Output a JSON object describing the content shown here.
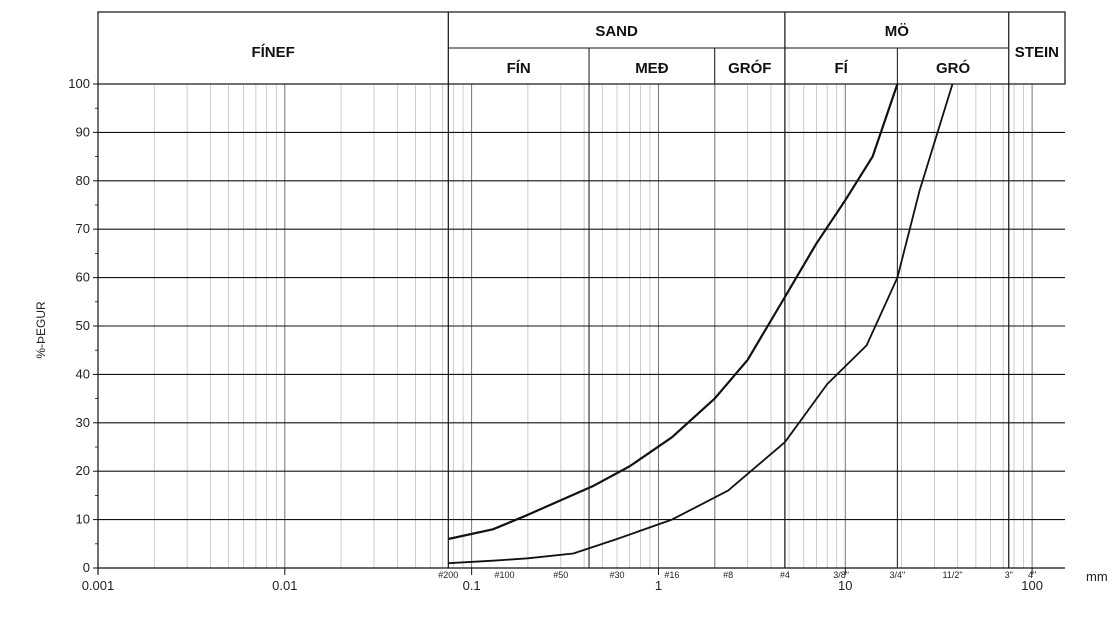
{
  "chart_data": {
    "type": "line",
    "title": "",
    "xlabel": "mm",
    "ylabel": "%-ÞEGUR",
    "xscale": "log",
    "xlim": [
      0.001,
      150
    ],
    "ylim": [
      0,
      100
    ],
    "grid": true,
    "y_ticks": [
      0,
      10,
      20,
      30,
      40,
      50,
      60,
      70,
      80,
      90,
      100
    ],
    "x_ticks": [
      {
        "value": 0.001,
        "label": "0.001"
      },
      {
        "value": 0.01,
        "label": "0.01"
      },
      {
        "value": 0.1,
        "label": "0.1"
      },
      {
        "value": 1,
        "label": "1"
      },
      {
        "value": 10,
        "label": "10"
      },
      {
        "value": 100,
        "label": "100"
      }
    ],
    "sieve_labels": [
      {
        "value": 0.075,
        "label": "#200"
      },
      {
        "value": 0.15,
        "label": "#100"
      },
      {
        "value": 0.3,
        "label": "#50"
      },
      {
        "value": 0.6,
        "label": "#30"
      },
      {
        "value": 1.18,
        "label": "#16"
      },
      {
        "value": 2.36,
        "label": "#8"
      },
      {
        "value": 4.75,
        "label": "#4"
      },
      {
        "value": 9.5,
        "label": "3/8\""
      },
      {
        "value": 19,
        "label": "3/4\""
      },
      {
        "value": 37.5,
        "label": "11/2\""
      },
      {
        "value": 75,
        "label": "3\""
      },
      {
        "value": 100,
        "label": "4\""
      }
    ],
    "zones_top": [
      {
        "label": "FÍNEF",
        "from": 0.001,
        "to": 0.075
      },
      {
        "label": "SAND",
        "from": 0.075,
        "to": 4.75
      },
      {
        "label": "MÖ",
        "from": 4.75,
        "to": 75
      },
      {
        "label": "STEIN",
        "from": 75,
        "to": 150
      }
    ],
    "zones_sub": [
      {
        "label": "FÍN",
        "from": 0.075,
        "to": 0.425
      },
      {
        "label": "MEÐ",
        "from": 0.425,
        "to": 2
      },
      {
        "label": "GRÓF",
        "from": 2,
        "to": 4.75
      },
      {
        "label": "FÍ",
        "from": 4.75,
        "to": 19
      },
      {
        "label": "GRÓ",
        "from": 19,
        "to": 75
      }
    ],
    "series": [
      {
        "x": [
          0.075,
          0.13,
          0.2,
          0.3,
          0.45,
          0.7,
          1.18,
          2.0,
          3.0,
          4.75,
          7.0,
          10.0,
          14.0,
          19.0
        ],
        "y": [
          6,
          8,
          11,
          14,
          17,
          21,
          27,
          35,
          43,
          56,
          67,
          76,
          85,
          100
        ]
      },
      {
        "x": [
          0.075,
          0.13,
          0.2,
          0.35,
          0.6,
          1.18,
          2.36,
          4.75,
          8.0,
          13.0,
          19.0,
          25.0,
          37.5
        ],
        "y": [
          1,
          1.5,
          2,
          3,
          6,
          10,
          16,
          26,
          38,
          46,
          60,
          78,
          100
        ]
      }
    ],
    "line_colors": [
      "#111111",
      "#111111"
    ]
  }
}
